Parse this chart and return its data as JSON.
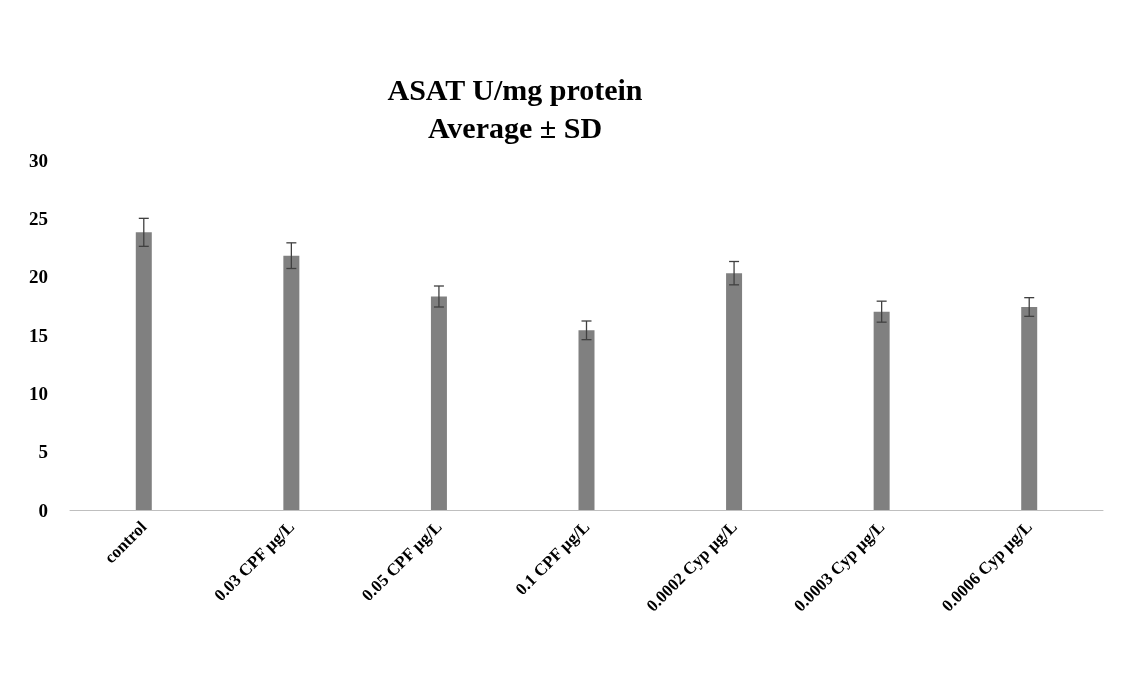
{
  "chart_data": {
    "type": "bar",
    "title": "ASAT U/mg protein\nAverage ± SD",
    "categories": [
      "control",
      "0.03 CPF µg/L",
      "0.05 CPF µg/L",
      "0.1 CPF µg/L",
      "0.0002 Cyp µg/L",
      "0.0003 Cyp µg/L",
      "0.0006 Cyp µg/L"
    ],
    "values": [
      23.8,
      21.8,
      18.3,
      15.4,
      20.3,
      17.0,
      17.4
    ],
    "errors": [
      1.2,
      1.1,
      0.9,
      0.8,
      1.0,
      0.9,
      0.8
    ],
    "color": "#808080",
    "ylim": [
      0,
      30
    ],
    "yticks": [
      0,
      5,
      10,
      15,
      20,
      25,
      30
    ]
  }
}
